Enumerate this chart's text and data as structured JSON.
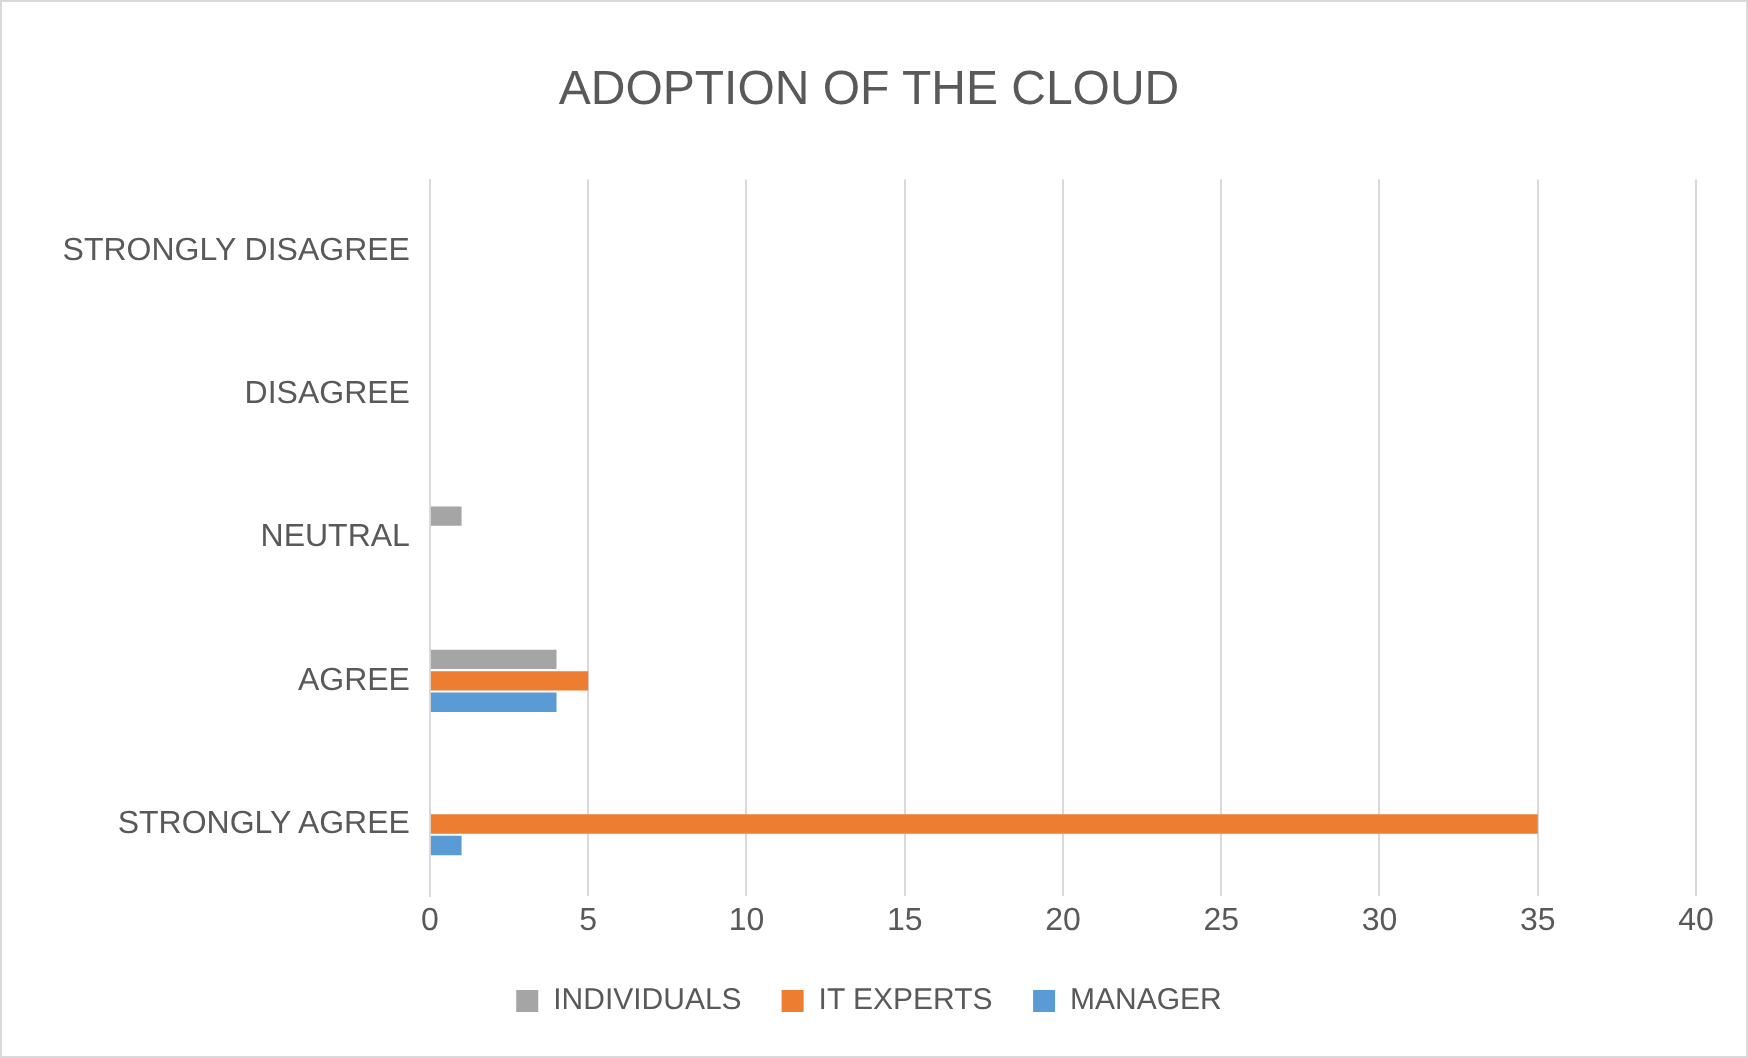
{
  "chart_data": {
    "type": "bar",
    "orientation": "horizontal",
    "title": "ADOPTION OF THE CLOUD",
    "categories": [
      "STRONGLY DISAGREE",
      "DISAGREE",
      "NEUTRAL",
      "AGREE",
      "STRONGLY AGREE"
    ],
    "series": [
      {
        "name": "INDIVIDUALS",
        "color": "#a5a5a5",
        "values": [
          0,
          0,
          1,
          4,
          0
        ]
      },
      {
        "name": "IT EXPERTS",
        "color": "#ed7d31",
        "values": [
          0,
          0,
          0,
          5,
          35
        ]
      },
      {
        "name": "MANAGER",
        "color": "#5b9bd5",
        "values": [
          0,
          0,
          0,
          4,
          1
        ]
      }
    ],
    "xlim": [
      0,
      40
    ],
    "xticks": [
      0,
      5,
      10,
      15,
      20,
      25,
      30,
      35,
      40
    ],
    "grid": "x",
    "legend": "bottom"
  }
}
